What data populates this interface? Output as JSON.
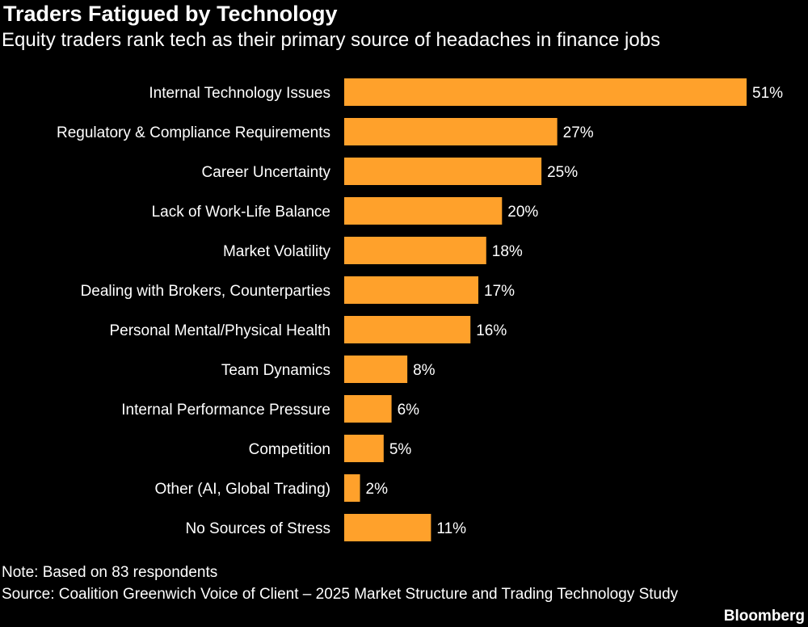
{
  "header": {
    "title": "Traders Fatigued by Technology",
    "subtitle": "Equity traders rank tech as their primary source of headaches in finance jobs"
  },
  "footer": {
    "note": "Note: Based on 83 respondents",
    "source": "Source: Coalition Greenwich Voice of Client – 2025 Market Structure and Trading Technology Study",
    "brand": "Bloomberg"
  },
  "colors": {
    "background": "#000000",
    "bar": "#FFA12B",
    "text": "#FFFFFF"
  },
  "chart_data": {
    "type": "bar",
    "orientation": "horizontal",
    "title": "Traders Fatigued by Technology",
    "subtitle": "Equity traders rank tech as their primary source of headaches in finance jobs",
    "xlabel": "",
    "ylabel": "",
    "grid": false,
    "categories": [
      "Internal Technology Issues",
      "Regulatory & Compliance Requirements",
      "Career Uncertainty",
      "Lack of Work-Life Balance",
      "Market Volatility",
      "Dealing with Brokers, Counterparties",
      "Personal Mental/Physical Health",
      "Team Dynamics",
      "Internal Performance Pressure",
      "Competition",
      "Other (AI, Global Trading)",
      "No Sources of Stress"
    ],
    "values": [
      51,
      27,
      25,
      20,
      18,
      17,
      16,
      8,
      6,
      5,
      2,
      11
    ],
    "value_labels": [
      "51%",
      "27%",
      "25%",
      "20%",
      "18%",
      "17%",
      "16%",
      "8%",
      "6%",
      "5%",
      "2%",
      "11%"
    ],
    "xlim": [
      0,
      51
    ]
  }
}
